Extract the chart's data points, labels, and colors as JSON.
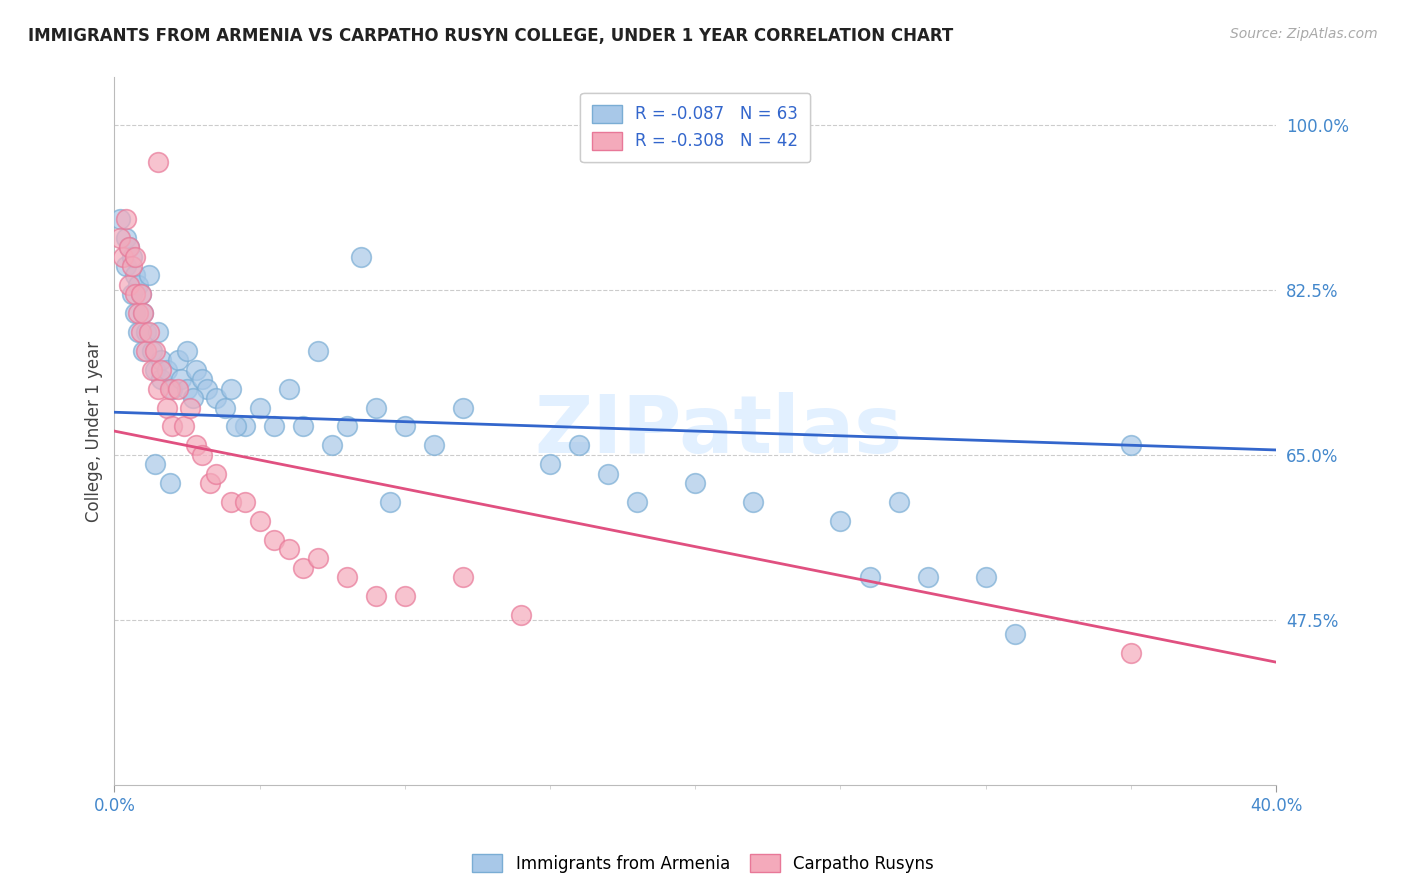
{
  "title": "IMMIGRANTS FROM ARMENIA VS CARPATHO RUSYN COLLEGE, UNDER 1 YEAR CORRELATION CHART",
  "source": "Source: ZipAtlas.com",
  "ylabel": "College, Under 1 year",
  "xlim": [
    0.0,
    0.4
  ],
  "ylim": [
    0.3,
    1.05
  ],
  "ytick_vals": [
    0.475,
    0.65,
    0.825,
    1.0
  ],
  "ytick_labels": [
    "47.5%",
    "65.0%",
    "82.5%",
    "100.0%"
  ],
  "xtick_major": [
    0.0,
    0.4
  ],
  "xtick_major_labels": [
    "0.0%",
    "40.0%"
  ],
  "xtick_minor": [
    0.05,
    0.1,
    0.15,
    0.2,
    0.25,
    0.3,
    0.35
  ],
  "legend_labels": [
    "R = -0.087   N = 63",
    "R = -0.308   N = 42"
  ],
  "legend_bottom_labels": [
    "Immigrants from Armenia",
    "Carpatho Rusyns"
  ],
  "blue_fill": "#a8c8e8",
  "blue_edge": "#7aadd4",
  "pink_fill": "#f4aabb",
  "pink_edge": "#e87898",
  "blue_line_color": "#3366cc",
  "pink_line_color": "#e05080",
  "watermark": "ZIPatlas",
  "blue_scatter_x": [
    0.002,
    0.004,
    0.004,
    0.005,
    0.006,
    0.006,
    0.007,
    0.007,
    0.008,
    0.008,
    0.009,
    0.01,
    0.01,
    0.011,
    0.012,
    0.013,
    0.014,
    0.015,
    0.016,
    0.016,
    0.018,
    0.02,
    0.022,
    0.023,
    0.025,
    0.025,
    0.028,
    0.03,
    0.032,
    0.035,
    0.038,
    0.04,
    0.045,
    0.05,
    0.055,
    0.06,
    0.065,
    0.07,
    0.075,
    0.08,
    0.09,
    0.1,
    0.11,
    0.12,
    0.15,
    0.16,
    0.17,
    0.18,
    0.2,
    0.22,
    0.25,
    0.26,
    0.27,
    0.28,
    0.3,
    0.31,
    0.35,
    0.014,
    0.019,
    0.027,
    0.042,
    0.085,
    0.095
  ],
  "blue_scatter_y": [
    0.9,
    0.88,
    0.85,
    0.87,
    0.86,
    0.82,
    0.84,
    0.8,
    0.83,
    0.78,
    0.82,
    0.8,
    0.76,
    0.78,
    0.84,
    0.76,
    0.74,
    0.78,
    0.75,
    0.73,
    0.74,
    0.72,
    0.75,
    0.73,
    0.76,
    0.72,
    0.74,
    0.73,
    0.72,
    0.71,
    0.7,
    0.72,
    0.68,
    0.7,
    0.68,
    0.72,
    0.68,
    0.76,
    0.66,
    0.68,
    0.7,
    0.68,
    0.66,
    0.7,
    0.64,
    0.66,
    0.63,
    0.6,
    0.62,
    0.6,
    0.58,
    0.52,
    0.6,
    0.52,
    0.52,
    0.46,
    0.66,
    0.64,
    0.62,
    0.71,
    0.68,
    0.86,
    0.6
  ],
  "pink_scatter_x": [
    0.002,
    0.003,
    0.004,
    0.005,
    0.005,
    0.006,
    0.007,
    0.007,
    0.008,
    0.009,
    0.009,
    0.01,
    0.011,
    0.012,
    0.013,
    0.014,
    0.015,
    0.016,
    0.018,
    0.019,
    0.02,
    0.022,
    0.024,
    0.026,
    0.028,
    0.03,
    0.033,
    0.035,
    0.04,
    0.045,
    0.05,
    0.055,
    0.06,
    0.065,
    0.07,
    0.08,
    0.09,
    0.1,
    0.12,
    0.14,
    0.35,
    0.015
  ],
  "pink_scatter_y": [
    0.88,
    0.86,
    0.9,
    0.87,
    0.83,
    0.85,
    0.82,
    0.86,
    0.8,
    0.82,
    0.78,
    0.8,
    0.76,
    0.78,
    0.74,
    0.76,
    0.72,
    0.74,
    0.7,
    0.72,
    0.68,
    0.72,
    0.68,
    0.7,
    0.66,
    0.65,
    0.62,
    0.63,
    0.6,
    0.6,
    0.58,
    0.56,
    0.55,
    0.53,
    0.54,
    0.52,
    0.5,
    0.5,
    0.52,
    0.48,
    0.44,
    0.96
  ],
  "blue_line_x": [
    0.0,
    0.4
  ],
  "blue_line_y": [
    0.695,
    0.655
  ],
  "pink_line_x": [
    0.0,
    0.4
  ],
  "pink_line_y": [
    0.675,
    0.43
  ]
}
